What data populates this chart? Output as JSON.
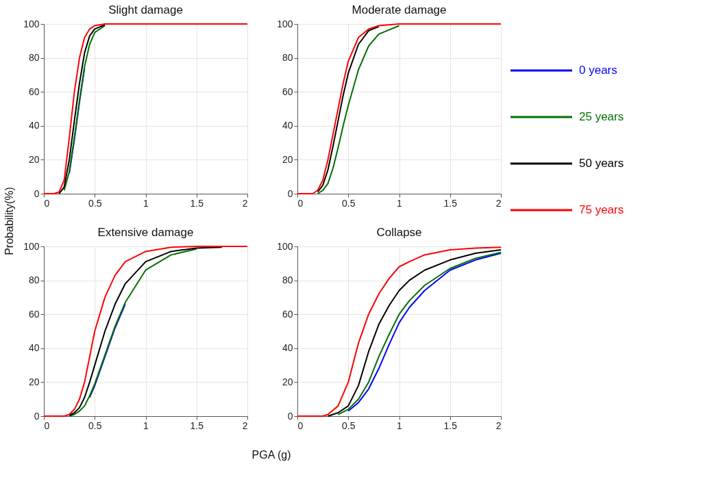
{
  "chart_data": [
    {
      "type": "line",
      "title": "Slight damage",
      "xlabel": "PGA (g)",
      "ylabel": "Probability(%)",
      "xlim": [
        0,
        2
      ],
      "ylim": [
        0,
        100
      ],
      "xticks": [
        0,
        0.5,
        1,
        1.5,
        2
      ],
      "yticks": [
        0,
        20,
        40,
        60,
        80,
        100
      ],
      "grid": true,
      "legend": "right",
      "line_style": "solid",
      "marker": "none",
      "x": [
        0,
        0.1,
        0.15,
        0.2,
        0.25,
        0.3,
        0.35,
        0.4,
        0.45,
        0.5,
        0.6,
        0.7,
        0.8,
        1,
        1.5,
        2
      ],
      "series": [
        {
          "name": "0 years",
          "color": "#0000ff",
          "values": [
            null,
            null,
            null,
            null,
            12,
            32,
            54,
            74,
            null,
            null,
            null,
            null,
            null,
            null,
            null,
            null
          ]
        },
        {
          "name": "25 years",
          "color": "#007000",
          "values": [
            null,
            null,
            null,
            2,
            13,
            33,
            55,
            75,
            88,
            95,
            99,
            null,
            null,
            null,
            null,
            null
          ]
        },
        {
          "name": "50 years",
          "color": "#000000",
          "values": [
            null,
            null,
            0,
            4,
            20,
            43,
            65,
            83,
            93,
            97,
            99.5,
            null,
            null,
            null,
            null,
            null
          ]
        },
        {
          "name": "75 years",
          "color": "#ff0000",
          "values": [
            0,
            0,
            1,
            8,
            33,
            60,
            80,
            92,
            97,
            99,
            100,
            100,
            100,
            100,
            100,
            100
          ]
        }
      ]
    },
    {
      "type": "line",
      "title": "Moderate damage",
      "xlim": [
        0,
        2
      ],
      "ylim": [
        0,
        100
      ],
      "xticks": [
        0,
        0.5,
        1,
        1.5,
        2
      ],
      "yticks": [
        0,
        20,
        40,
        60,
        80,
        100
      ],
      "grid": true,
      "line_style": "solid",
      "marker": "none",
      "x": [
        0,
        0.15,
        0.2,
        0.25,
        0.3,
        0.35,
        0.4,
        0.45,
        0.5,
        0.6,
        0.7,
        0.8,
        1,
        1.25,
        1.5,
        2
      ],
      "series": [
        {
          "color": "#007000",
          "values": [
            null,
            null,
            0,
            2,
            6,
            15,
            27,
            40,
            52,
            73,
            87,
            94,
            99,
            null,
            null,
            null
          ]
        },
        {
          "color": "#000000",
          "values": [
            null,
            null,
            1,
            5,
            14,
            28,
            43,
            58,
            71,
            88,
            96,
            98.5,
            null,
            null,
            null,
            null
          ]
        },
        {
          "color": "#ff0000",
          "values": [
            0,
            0,
            2,
            8,
            20,
            35,
            50,
            65,
            78,
            92,
            97,
            99,
            100,
            100,
            100,
            100
          ]
        }
      ]
    },
    {
      "type": "line",
      "title": "Extensive damage",
      "xlim": [
        0,
        2
      ],
      "ylim": [
        0,
        100
      ],
      "xticks": [
        0,
        0.5,
        1,
        1.5,
        2
      ],
      "yticks": [
        0,
        20,
        40,
        60,
        80,
        100
      ],
      "grid": true,
      "line_style": "solid",
      "marker": "none",
      "x": [
        0,
        0.2,
        0.25,
        0.3,
        0.35,
        0.4,
        0.45,
        0.5,
        0.6,
        0.7,
        0.8,
        1,
        1.25,
        1.5,
        1.75,
        2
      ],
      "series": [
        {
          "color": "#0000ff",
          "values": [
            null,
            null,
            null,
            null,
            null,
            null,
            11,
            18,
            35,
            52,
            66,
            null,
            null,
            null,
            null,
            null
          ]
        },
        {
          "color": "#007000",
          "values": [
            null,
            null,
            0,
            1,
            3,
            6,
            12,
            19,
            36,
            53,
            67,
            86,
            95,
            98.5,
            null,
            null
          ]
        },
        {
          "color": "#000000",
          "values": [
            null,
            null,
            0.5,
            2,
            5,
            11,
            20,
            30,
            50,
            66,
            78,
            91,
            97,
            99,
            99.5,
            null
          ]
        },
        {
          "color": "#ff0000",
          "values": [
            0,
            0,
            1,
            4,
            10,
            20,
            35,
            50,
            70,
            83,
            91,
            97,
            99.5,
            100,
            100,
            100
          ]
        }
      ]
    },
    {
      "type": "line",
      "title": "Collapse",
      "xlim": [
        0,
        2
      ],
      "ylim": [
        0,
        100
      ],
      "xticks": [
        0,
        0.5,
        1,
        1.5,
        2
      ],
      "yticks": [
        0,
        20,
        40,
        60,
        80,
        100
      ],
      "grid": true,
      "line_style": "solid",
      "marker": "none",
      "x": [
        0,
        0.25,
        0.3,
        0.4,
        0.5,
        0.6,
        0.7,
        0.8,
        0.9,
        1,
        1.1,
        1.25,
        1.5,
        1.75,
        2
      ],
      "series": [
        {
          "color": "#0000ff",
          "values": [
            null,
            null,
            null,
            null,
            3,
            8,
            16,
            28,
            42,
            55,
            64,
            74,
            86,
            92,
            96
          ]
        },
        {
          "color": "#007000",
          "values": [
            null,
            null,
            null,
            1,
            4,
            10,
            20,
            35,
            48,
            60,
            68,
            77,
            87,
            93,
            96.5
          ]
        },
        {
          "color": "#000000",
          "values": [
            null,
            null,
            0,
            2,
            6,
            18,
            38,
            54,
            65,
            74,
            80,
            86,
            92,
            96,
            98
          ]
        },
        {
          "color": "#ff0000",
          "values": [
            0,
            0,
            1,
            6,
            20,
            43,
            60,
            72,
            81,
            88,
            91,
            95,
            98,
            99,
            99.5
          ]
        }
      ]
    }
  ]
}
